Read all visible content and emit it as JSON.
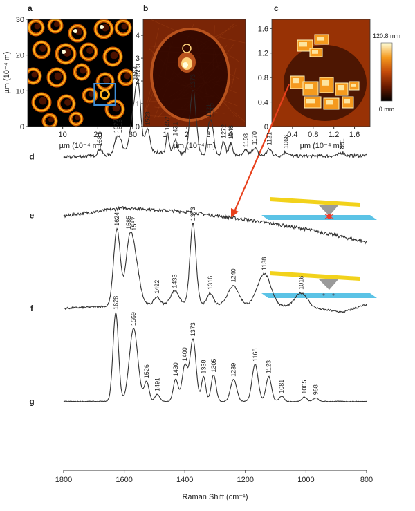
{
  "chart_data": [
    {
      "type": "heatmap",
      "panel": "a",
      "xlabel": "µm (10⁻⁴ m)",
      "ylabel": "µm (10⁻⁴ m)",
      "xlim": [
        0,
        30
      ],
      "ylim": [
        0,
        30
      ],
      "x_ticks": [
        "10",
        "20",
        "30"
      ],
      "y_ticks": [
        "0",
        "10",
        "20",
        "30"
      ],
      "highlight_box": {
        "x": [
          19,
          25
        ],
        "y": [
          6,
          12
        ],
        "color": "#3f8fd8"
      },
      "colormap": [
        "#000000",
        "#6b1a00",
        "#d45a00",
        "#ffb21a",
        "#ffffd9"
      ]
    },
    {
      "type": "heatmap",
      "panel": "b",
      "xlabel": "µm (10⁻⁴ m)",
      "xlim": [
        0,
        4.7
      ],
      "ylim": [
        0,
        4.7
      ],
      "x_ticks": [
        "1",
        "2",
        "3",
        "4"
      ],
      "y_ticks": [
        "0",
        "1",
        "2",
        "3",
        "4"
      ],
      "colormap": [
        "#2a0500",
        "#7a2506",
        "#b8521d",
        "#ffd27a",
        "#ffffe0"
      ]
    },
    {
      "type": "heatmap",
      "panel": "c",
      "xlabel": "µm (10⁻⁴ m)",
      "xlim": [
        0,
        1.9
      ],
      "ylim": [
        0,
        1.75
      ],
      "x_ticks": [
        "0.4",
        "0.8",
        "1.2",
        "1.6"
      ],
      "y_ticks": [
        "0",
        "0.4",
        "0.8",
        "1.2",
        "1.6"
      ],
      "colorbar": {
        "max_label": "120.8 mm",
        "min_label": "0 mm",
        "colors": [
          "#000000",
          "#6b1a00",
          "#c44a0a",
          "#f59a1e",
          "#ffffd9"
        ]
      },
      "colormap": [
        "#1a0300",
        "#6b1a00",
        "#c44a0a",
        "#f59a1e",
        "#fff7c0"
      ]
    },
    {
      "type": "line",
      "xlabel": "Raman Shift (cm⁻¹)",
      "xlim": [
        1800,
        800
      ],
      "x_ticks": [
        1800,
        1600,
        1400,
        1200,
        1000,
        800
      ],
      "series": [
        {
          "label": "d",
          "offset": 0.77,
          "amp": 0.16,
          "background": [
            [
              1800,
              0.02
            ],
            [
              1500,
              0.1
            ],
            [
              1300,
              0.06
            ],
            [
              1000,
              0.04
            ],
            [
              800,
              0.05
            ]
          ],
          "noise": 0.025,
          "peaks": [
            [
              1681,
              0.1,
              7
            ],
            [
              1627,
              0.18,
              8
            ],
            [
              1615,
              0.22,
              8
            ],
            [
              1564,
              0.72,
              14
            ],
            [
              1553,
              0.55,
              8
            ],
            [
              1523,
              0.35,
              8
            ],
            [
              1457,
              0.3,
              5
            ],
            [
              1431,
              0.22,
              6
            ],
            [
              1373,
              1.0,
              10
            ],
            [
              1321,
              0.35,
              6
            ],
            [
              1310,
              0.4,
              7
            ],
            [
              1272,
              0.22,
              6
            ],
            [
              1248,
              0.18,
              6
            ],
            [
              1198,
              0.08,
              6
            ],
            [
              1170,
              0.12,
              8
            ],
            [
              1121,
              0.1,
              8
            ],
            [
              1066,
              0.06,
              8
            ],
            [
              881,
              0.05,
              8
            ]
          ],
          "peak_labels": [
            "1681",
            "1627",
            "1615",
            "1564",
            "1553",
            "1523",
            "1457",
            "1431",
            "1373",
            "1321",
            "1310",
            "1272",
            "1248",
            "1198",
            "1170",
            "1121",
            "1066",
            "881"
          ]
        },
        {
          "label": "e",
          "offset": 0.62,
          "amp": 0.16,
          "background": [
            [
              1800,
              0.05
            ],
            [
              1600,
              0.18
            ],
            [
              1400,
              0.12
            ],
            [
              1200,
              0.0
            ],
            [
              1000,
              -0.15
            ],
            [
              800,
              -0.35
            ]
          ],
          "noise": 0.025,
          "peaks": [],
          "peak_labels": []
        },
        {
          "label": "f",
          "offset": 0.4,
          "amp": 0.19,
          "background": [
            [
              1800,
              0.0
            ],
            [
              1700,
              0.02
            ],
            [
              1500,
              0.05
            ],
            [
              1300,
              0.05
            ],
            [
              1000,
              0.02
            ],
            [
              880,
              -0.05
            ],
            [
              800,
              0.05
            ]
          ],
          "noise": 0.012,
          "peaks": [
            [
              1624,
              1.0,
              11
            ],
            [
              1585,
              0.55,
              12
            ],
            [
              1567,
              0.62,
              16
            ],
            [
              1492,
              0.1,
              10
            ],
            [
              1433,
              0.18,
              14
            ],
            [
              1373,
              1.05,
              10
            ],
            [
              1316,
              0.15,
              10
            ],
            [
              1240,
              0.25,
              18
            ],
            [
              1138,
              0.42,
              22
            ],
            [
              1016,
              0.18,
              20
            ]
          ],
          "peak_labels": [
            "1624",
            "1585",
            "1567",
            "1492",
            "1433",
            "1373",
            "1316",
            "1240",
            "1138",
            "1016"
          ]
        },
        {
          "label": "g",
          "offset": 0.17,
          "amp": 0.22,
          "background": [
            [
              1800,
              0.0
            ],
            [
              800,
              0.0
            ]
          ],
          "noise": 0.004,
          "peaks": [
            [
              1628,
              1.0,
              9
            ],
            [
              1569,
              0.82,
              14
            ],
            [
              1526,
              0.22,
              8
            ],
            [
              1491,
              0.08,
              8
            ],
            [
              1430,
              0.25,
              8
            ],
            [
              1400,
              0.4,
              9
            ],
            [
              1373,
              0.7,
              10
            ],
            [
              1338,
              0.28,
              7
            ],
            [
              1305,
              0.3,
              8
            ],
            [
              1239,
              0.25,
              10
            ],
            [
              1168,
              0.42,
              10
            ],
            [
              1123,
              0.28,
              9
            ],
            [
              1081,
              0.06,
              8
            ],
            [
              1005,
              0.05,
              8
            ],
            [
              968,
              0.04,
              8
            ]
          ],
          "peak_labels": [
            "1628",
            "1569",
            "1526",
            "1491",
            "1430",
            "1400",
            "1373",
            "1338",
            "1305",
            "1239",
            "1168",
            "1123",
            "1081",
            "1005",
            "968"
          ]
        }
      ]
    }
  ]
}
